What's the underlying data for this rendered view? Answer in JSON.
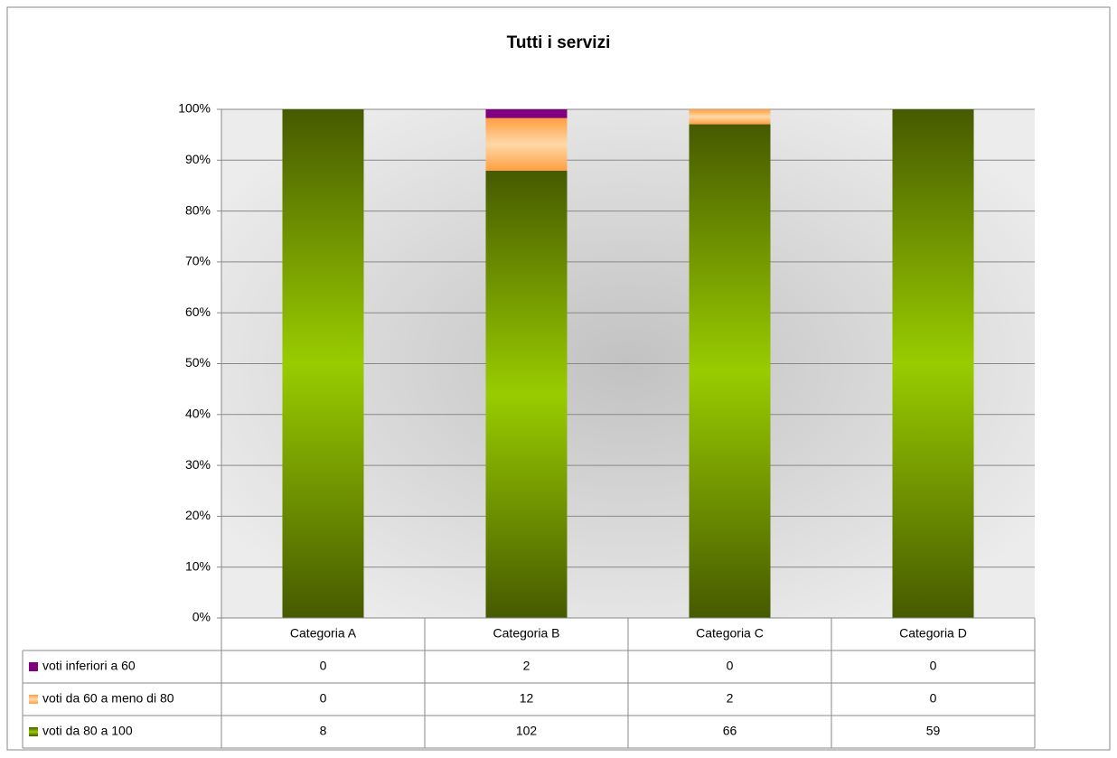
{
  "chart_data": {
    "type": "stacked_percent_bar",
    "title": "Tutti i servizi",
    "categories": [
      "Categoria A",
      "Categoria B",
      "Categoria C",
      "Categoria D"
    ],
    "series": [
      {
        "name": "voti inferiori a 60",
        "color": "#800080",
        "values": [
          0,
          2,
          0,
          0
        ]
      },
      {
        "name": "voti da 60 a meno di 80",
        "color": "#ffb366",
        "values": [
          0,
          12,
          2,
          0
        ]
      },
      {
        "name": "voti da 80 a 100",
        "color": "#99cc00",
        "values": [
          8,
          102,
          66,
          59
        ]
      }
    ],
    "ylim": [
      0,
      100
    ],
    "yticks": [
      {
        "value": 0,
        "label": "0%"
      },
      {
        "value": 10,
        "label": "10%"
      },
      {
        "value": 20,
        "label": "20%"
      },
      {
        "value": 30,
        "label": "30%"
      },
      {
        "value": 40,
        "label": "40%"
      },
      {
        "value": 50,
        "label": "50%"
      },
      {
        "value": 60,
        "label": "60%"
      },
      {
        "value": 70,
        "label": "70%"
      },
      {
        "value": 80,
        "label": "80%"
      },
      {
        "value": 90,
        "label": "90%"
      },
      {
        "value": 100,
        "label": "100%"
      }
    ],
    "grid": true
  }
}
